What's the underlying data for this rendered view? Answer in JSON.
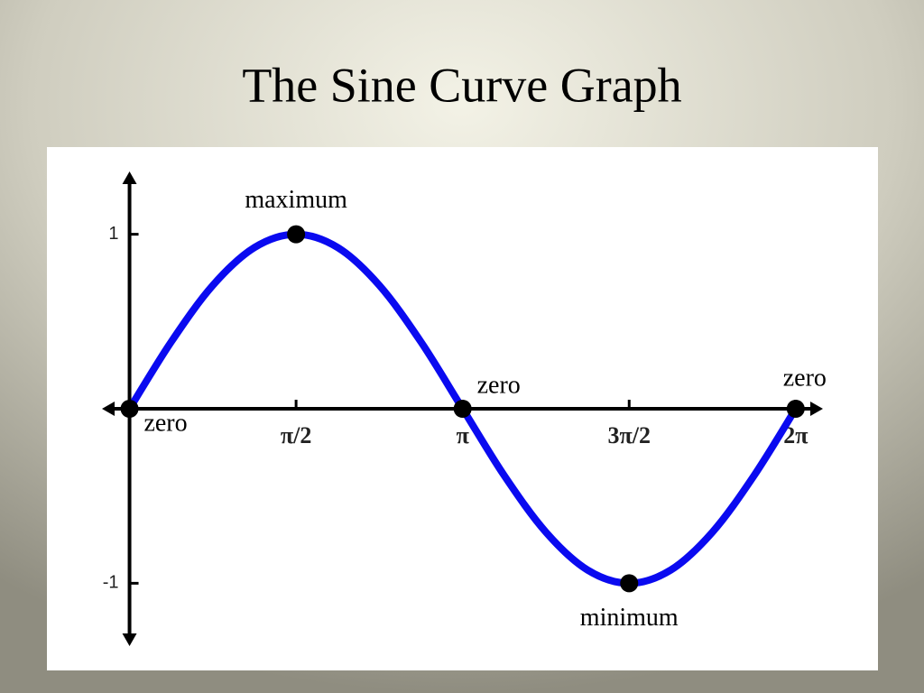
{
  "chart_data": {
    "type": "line",
    "title": "The Sine Curve Graph",
    "x": [
      0,
      0.3927,
      0.7854,
      1.1781,
      1.5708,
      1.9635,
      2.3562,
      2.7489,
      3.1416,
      3.5343,
      3.927,
      4.3197,
      4.7124,
      5.1051,
      5.4978,
      5.8905,
      6.2832
    ],
    "values": [
      0,
      0.383,
      0.707,
      0.924,
      1,
      0.924,
      0.707,
      0.383,
      0,
      -0.383,
      -0.707,
      -0.924,
      -1,
      -0.924,
      -0.707,
      -0.383,
      0
    ],
    "color": "#0a0af0",
    "xlim": [
      -0.26,
      6.54
    ],
    "ylim": [
      -1.36,
      1.36
    ],
    "xticks": [
      {
        "value": 1.5708,
        "label": "π/2"
      },
      {
        "value": 3.1416,
        "label": "π"
      },
      {
        "value": 4.7124,
        "label": "3π/2"
      },
      {
        "value": 6.2832,
        "label": "2π"
      }
    ],
    "yticks": [
      1,
      -1
    ],
    "points": [
      {
        "label": "zero",
        "x": 0,
        "y": 0
      },
      {
        "label": "maximum",
        "x": 1.5708,
        "y": 1
      },
      {
        "label": "zero",
        "x": 3.1416,
        "y": 0
      },
      {
        "label": "minimum",
        "x": 4.7124,
        "y": -1
      },
      {
        "label": "zero",
        "x": 6.2832,
        "y": 0
      }
    ]
  }
}
